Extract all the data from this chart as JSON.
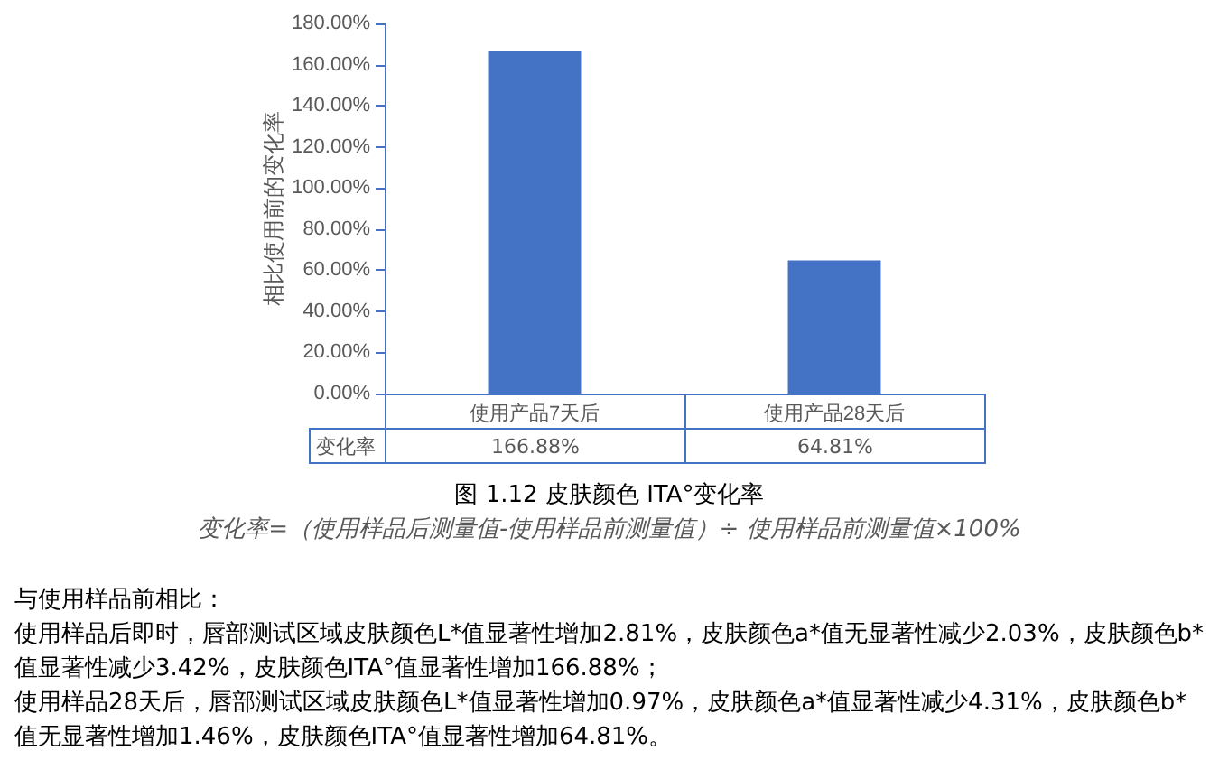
{
  "chart_data": {
    "type": "bar",
    "title": "图 1.12 皮肤颜色 ITA°变化率",
    "subtitle": "变化率=（使用样品后测量值-使用样品前测量值）÷ 使用样品前测量值×100%",
    "ylabel": "相比使用前的变化率",
    "categories": [
      "使用产品7天后",
      "使用产品28天后"
    ],
    "values": [
      166.88,
      64.81
    ],
    "value_labels": [
      "166.88%",
      "64.81%"
    ],
    "color": "#4472c4",
    "ylim": [
      0,
      180
    ],
    "yticks": [
      {
        "value": 0,
        "label": "0.00%"
      },
      {
        "value": 20,
        "label": "20.00%"
      },
      {
        "value": 40,
        "label": "40.00%"
      },
      {
        "value": 60,
        "label": "60.00%"
      },
      {
        "value": 80,
        "label": "80.00%"
      },
      {
        "value": 100,
        "label": "100.00%"
      },
      {
        "value": 120,
        "label": "120.00%"
      },
      {
        "value": 140,
        "label": "140.00%"
      },
      {
        "value": 160,
        "label": "160.00%"
      },
      {
        "value": 180,
        "label": "180.00%"
      }
    ],
    "grid": false,
    "annotations": [
      "变化率",
      "与使用样品前相比：",
      "使用样品后即时，唇部测试区域皮肤颜色L*值显著性增加2.81%，皮肤颜色a*值无显著性减少2.03%，皮肤颜色b*值显著性减少3.42%，皮肤颜色ITA°值显著性增加166.88%；",
      "使用样品28天后，唇部测试区域皮肤颜色L*值显著性增加0.97%，皮肤颜色a*值显著性减少4.31%，皮肤颜色b*值无显著性增加1.46%，皮肤颜色ITA°值显著性增加64.81%。"
    ]
  }
}
